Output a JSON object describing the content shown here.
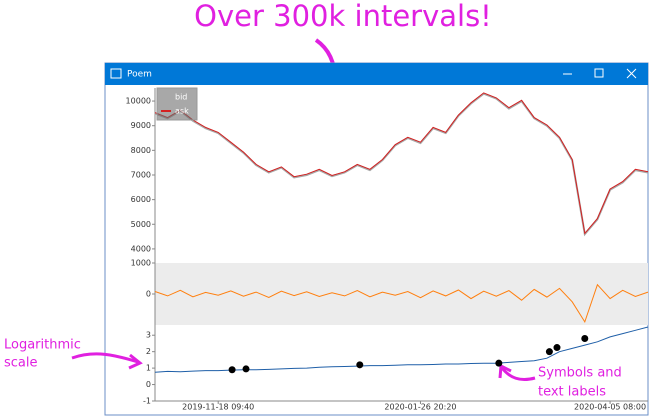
{
  "window_title": "Poem",
  "annotations": {
    "headline": "Over 300k intervals!",
    "log_note": [
      "Logarithmic",
      "scale"
    ],
    "symbols_note": [
      "Symbols and",
      "text labels"
    ]
  },
  "chart_data": [
    {
      "type": "line",
      "legend": "upper left",
      "series": [
        {
          "name": "bid",
          "color": "#a8a8a8",
          "values": [
            9500,
            9300,
            9600,
            9200,
            8900,
            8700,
            8300,
            7900,
            7400,
            7100,
            7300,
            6900,
            7000,
            7200,
            6950,
            7100,
            7400,
            7200,
            7600,
            8200,
            8500,
            8300,
            8900,
            8700,
            9400,
            9900,
            10300,
            10100,
            9700,
            10000,
            9300,
            9000,
            8500,
            7600,
            4600,
            5200,
            6400,
            6700,
            7200,
            7100
          ]
        },
        {
          "name": "ask",
          "color": "#d42020",
          "values": [
            9530,
            9330,
            9630,
            9230,
            8930,
            8730,
            8330,
            7930,
            7430,
            7130,
            7330,
            6930,
            7030,
            7230,
            6980,
            7130,
            7430,
            7230,
            7630,
            8230,
            8530,
            8330,
            8930,
            8730,
            9430,
            9930,
            10330,
            10130,
            9730,
            10030,
            9330,
            9030,
            8530,
            7630,
            4630,
            5230,
            6430,
            6730,
            7230,
            7130
          ]
        }
      ],
      "ylim": [
        3550,
        10530
      ],
      "yticks": [
        4000,
        5000,
        6000,
        7000,
        8000,
        9000,
        10000
      ]
    },
    {
      "type": "line",
      "series": [
        {
          "color": "#ff7f0e",
          "values": [
            80,
            -60,
            120,
            -90,
            50,
            -40,
            100,
            -70,
            60,
            -110,
            90,
            -50,
            70,
            -80,
            40,
            -60,
            110,
            -90,
            60,
            -40,
            80,
            -120,
            100,
            -60,
            130,
            -150,
            90,
            -70,
            110,
            -200,
            150,
            -100,
            180,
            -250,
            -900,
            300,
            -150,
            120,
            -80,
            60
          ]
        }
      ],
      "ylim": [
        -1000,
        1000
      ],
      "yticks": [
        0,
        1000
      ]
    },
    {
      "type": "line",
      "categories": [
        null,
        null,
        null,
        null,
        null,
        "2019-11-18 09:40",
        null,
        null,
        null,
        null,
        null,
        null,
        null,
        null,
        null,
        null,
        null,
        null,
        null,
        null,
        null,
        "2020-01-26 20:20",
        null,
        null,
        null,
        null,
        null,
        null,
        null,
        null,
        null,
        null,
        null,
        null,
        null,
        null,
        "2020-04-05 08:00",
        null,
        null,
        null
      ],
      "series": [
        {
          "color": "#1f5fa8",
          "values": [
            0.75,
            0.8,
            0.78,
            0.82,
            0.85,
            0.85,
            0.88,
            0.9,
            0.9,
            0.92,
            0.95,
            0.98,
            1.0,
            1.05,
            1.08,
            1.1,
            1.12,
            1.15,
            1.15,
            1.18,
            1.2,
            1.2,
            1.22,
            1.25,
            1.25,
            1.28,
            1.3,
            1.3,
            1.35,
            1.4,
            1.45,
            1.6,
            2.0,
            2.2,
            2.4,
            2.6,
            2.9,
            3.1,
            3.3,
            3.5
          ]
        }
      ],
      "points": {
        "color": "#000000",
        "x": [
          6.1,
          7.2,
          16.2,
          27.2,
          31.2,
          31.8,
          34
        ],
        "values": [
          0.9,
          0.95,
          1.2,
          1.3,
          2.0,
          2.25,
          2.8
        ]
      },
      "ylim": [
        -1,
        3.5
      ],
      "yticks": [
        -1,
        0,
        1,
        2,
        3
      ]
    }
  ]
}
